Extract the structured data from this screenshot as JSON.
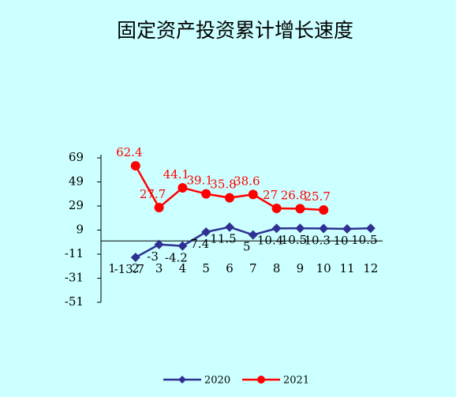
{
  "chart_data": {
    "type": "line",
    "title": "固定资产投资累计增长速度",
    "categories": [
      "1",
      "2",
      "3",
      "4",
      "5",
      "6",
      "7",
      "8",
      "9",
      "10",
      "11",
      "12"
    ],
    "series": [
      {
        "name": "2020",
        "color": "#2e3192",
        "marker": "diamond",
        "values": [
          null,
          -13.7,
          -3,
          -4.2,
          7.4,
          11.5,
          5,
          10.4,
          10.5,
          10.3,
          10,
          10.5
        ]
      },
      {
        "name": "2021",
        "color": "#ff0000",
        "marker": "circle",
        "values": [
          null,
          62.4,
          27.7,
          44.1,
          39.1,
          35.8,
          38.6,
          27,
          26.8,
          25.7,
          null,
          null
        ]
      }
    ],
    "ylim": [
      -51,
      69
    ],
    "yticks": [
      69,
      49,
      29,
      9,
      -11,
      -31,
      -51
    ],
    "grid": false,
    "legend": "bottom"
  }
}
